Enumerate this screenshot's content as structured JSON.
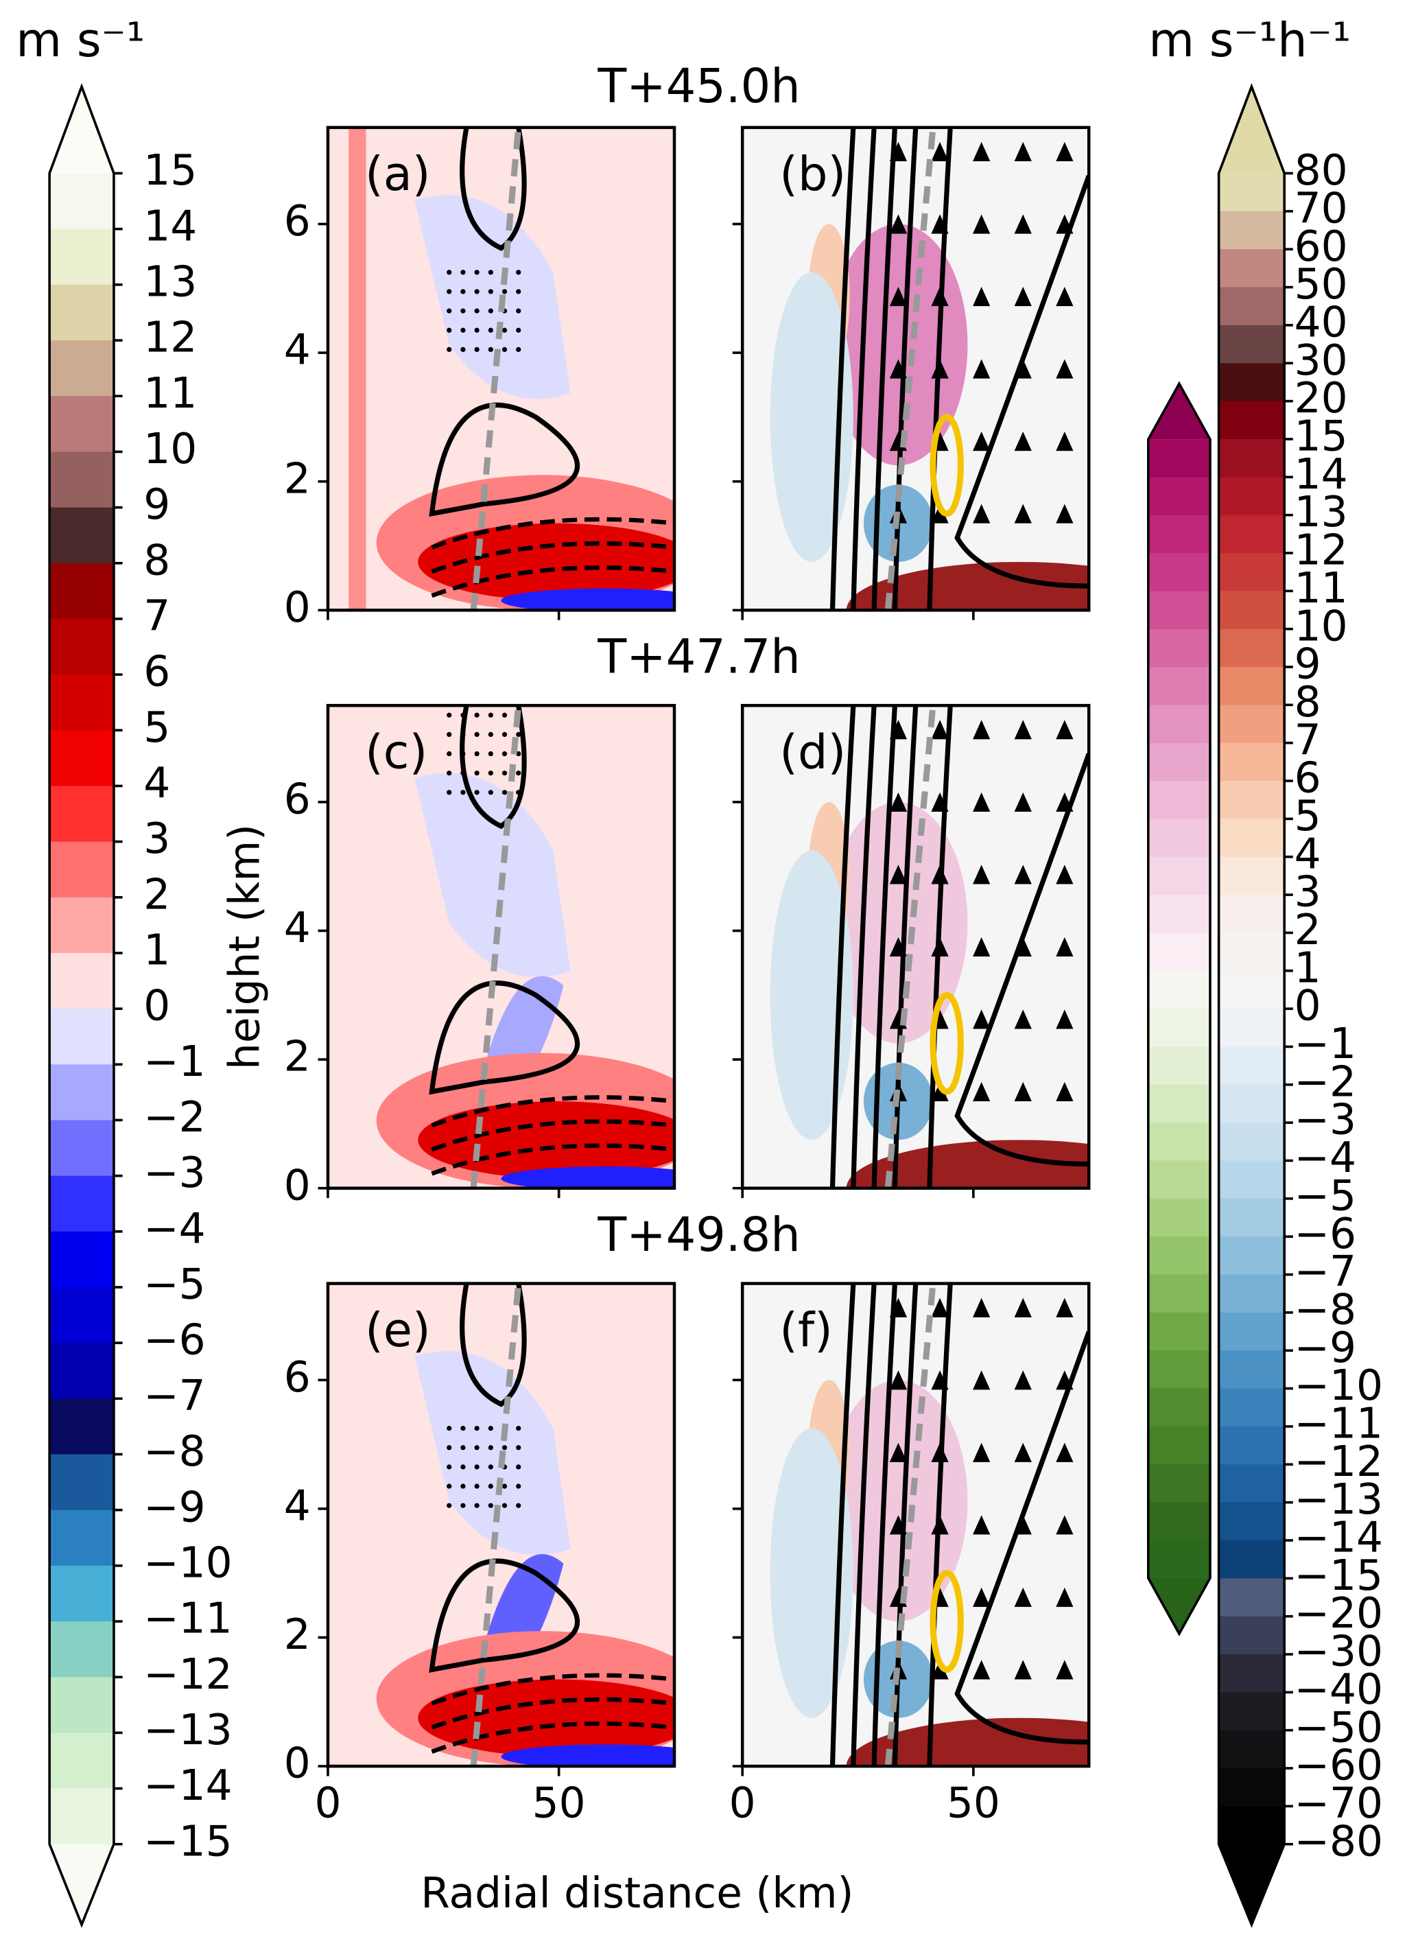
{
  "chart_data": {
    "type": "contour",
    "titles": [
      "T+45.0h",
      "T+47.7h",
      "T+49.8h"
    ],
    "panels": [
      "(a)",
      "(b)",
      "(c)",
      "(d)",
      "(e)",
      "(f)"
    ],
    "xlabel": "Radial distance (km)",
    "ylabel": "height (km)",
    "xlim": [
      0,
      75
    ],
    "ylim": [
      0,
      7.5
    ],
    "xticks": [
      0,
      50
    ],
    "yticks": [
      0,
      2,
      4,
      6
    ],
    "colorbars": [
      {
        "unit": "m s⁻¹",
        "ticks": [
          15,
          14,
          13,
          12,
          11,
          10,
          9,
          8,
          7,
          6,
          5,
          4,
          3,
          2,
          1,
          0,
          {
            "value": -1,
            "label": "−1"
          },
          {
            "value": -2,
            "label": "−2"
          },
          {
            "value": -3,
            "label": "−3"
          },
          {
            "value": -4,
            "label": "−4"
          },
          {
            "value": -5,
            "label": "−5"
          },
          {
            "value": -6,
            "label": "−6"
          },
          {
            "value": -7,
            "label": "−7"
          },
          {
            "value": -8,
            "label": "−8"
          },
          {
            "value": -9,
            "label": "−9"
          },
          {
            "value": -10,
            "label": "−10"
          },
          {
            "value": -11,
            "label": "−11"
          },
          {
            "value": -12,
            "label": "−12"
          },
          {
            "value": -13,
            "label": "−13"
          },
          {
            "value": -14,
            "label": "−14"
          },
          {
            "value": -15,
            "label": "−15"
          }
        ],
        "colors": [
          "#fbfdf6",
          "#f5f8ec",
          "#ecefd0",
          "#ddd3a8",
          "#cbab91",
          "#b97a7a",
          "#946060",
          "#4a2a2a",
          "#960000",
          "#b80000",
          "#d40000",
          "#f00000",
          "#ff3030",
          "#ff7070",
          "#ffa8a8",
          "#ffe0e0",
          "#e0e0ff",
          "#a8a8ff",
          "#7070ff",
          "#3030ff",
          "#0000f0",
          "#0000d4",
          "#0000b0",
          "#0a0a60",
          "#1a5a9c",
          "#2a80c0",
          "#48b0d6",
          "#88d0c4",
          "#bce6c4",
          "#d4efcc",
          "#e8f6e0",
          "#f8fbf4"
        ]
      },
      {
        "colors": [
          "#8e0152",
          "#a3085f",
          "#b4166c",
          "#c0267a",
          "#c83a88",
          "#d05096",
          "#d866a4",
          "#de7cb2",
          "#e492c0",
          "#e8a6cc",
          "#eeb8d6",
          "#f2c8de",
          "#f5d6e6",
          "#f8e2ee",
          "#faeef4",
          "#f6f6f0",
          "#eef4e4",
          "#e4f0d4",
          "#d6eac0",
          "#c8e3aa",
          "#b8da94",
          "#a6d07e",
          "#94c46a",
          "#82b858",
          "#70aa46",
          "#609c3a",
          "#528e30",
          "#468228",
          "#3c7622",
          "#326b1e",
          "#2b6a1c",
          "#276419"
        ]
      },
      {
        "unit": "m s⁻¹h⁻¹",
        "ticks": [
          80,
          70,
          60,
          50,
          40,
          30,
          20,
          15,
          14,
          13,
          12,
          11,
          10,
          9,
          8,
          7,
          6,
          5,
          4,
          3,
          2,
          1,
          0,
          {
            "value": -1,
            "label": "−1"
          },
          {
            "value": -2,
            "label": "−2"
          },
          {
            "value": -3,
            "label": "−3"
          },
          {
            "value": -4,
            "label": "−4"
          },
          {
            "value": -5,
            "label": "−5"
          },
          {
            "value": -6,
            "label": "−6"
          },
          {
            "value": -7,
            "label": "−7"
          },
          {
            "value": -8,
            "label": "−8"
          },
          {
            "value": -9,
            "label": "−9"
          },
          {
            "value": -10,
            "label": "−10"
          },
          {
            "value": -11,
            "label": "−11"
          },
          {
            "value": -12,
            "label": "−12"
          },
          {
            "value": -13,
            "label": "−13"
          },
          {
            "value": -14,
            "label": "−14"
          },
          {
            "value": -15,
            "label": "−15"
          },
          {
            "value": -20,
            "label": "−20"
          },
          {
            "value": -30,
            "label": "−30"
          },
          {
            "value": -40,
            "label": "−40"
          },
          {
            "value": -50,
            "label": "−50"
          },
          {
            "value": -60,
            "label": "−60"
          },
          {
            "value": -70,
            "label": "−70"
          },
          {
            "value": -80,
            "label": "−80"
          }
        ],
        "colors": [
          "#e0d9a8",
          "#e2dbb0",
          "#d4b8a0",
          "#c08880",
          "#a06868",
          "#6a4444",
          "#4a1010",
          "#800010",
          "#9a1020",
          "#b01828",
          "#c02630",
          "#c83a38",
          "#d05040",
          "#dc6a50",
          "#e88a68",
          "#f0a080",
          "#f6b898",
          "#f8ccb0",
          "#fadcc4",
          "#fae8dc",
          "#f8eeec",
          "#f6f2f0",
          "#f4f4f4",
          "#eef2f6",
          "#e2ecf4",
          "#d6e6f0",
          "#c8dfee",
          "#b8d6ea",
          "#a4cbe4",
          "#8ebfdd",
          "#78b1d5",
          "#62a2cc",
          "#4c92c4",
          "#3a82ba",
          "#2c72ae",
          "#1f62a0",
          "#15518c",
          "#0c4278",
          "#505a7c",
          "#3a3f5a",
          "#2a2a38",
          "#1c1c22",
          "#121214",
          "#080808",
          "#000000",
          "#000000"
        ]
      }
    ]
  }
}
